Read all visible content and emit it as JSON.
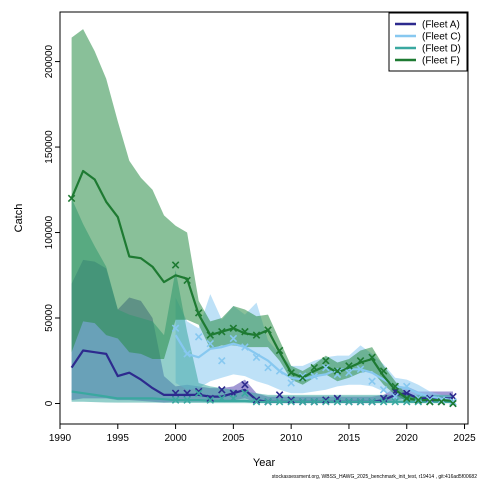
{
  "chart_data": {
    "type": "line",
    "xlabel": "Year",
    "ylabel": "Catch",
    "xlim": [
      1990,
      2025.3
    ],
    "ylim": [
      -12000,
      229000
    ],
    "xticks": [
      1990,
      1995,
      2000,
      2005,
      2010,
      2015,
      2020,
      2025
    ],
    "yticks": [
      0,
      50000,
      100000,
      150000,
      200000
    ],
    "xtick_labels": [
      "1990",
      "1995",
      "2000",
      "2005",
      "2010",
      "2015",
      "2020",
      "2025"
    ],
    "ytick_labels": [
      "0",
      "50000",
      "100000",
      "150000",
      "200000"
    ],
    "legend_position": "top-right",
    "footnote": "stockassessment.org, WBSS_HAWG_2025_benchmark_init_test, r19414 , git:416ad5f00682",
    "series": [
      {
        "name": "(Fleet A)",
        "color": "#2d2a8e",
        "fill": "rgba(86,70,176,0.55)",
        "x": [
          1991,
          1992,
          1993,
          1994,
          1995,
          1996,
          1997,
          1998,
          1999,
          2000,
          2001,
          2002,
          2003,
          2004,
          2005,
          2006,
          2007,
          2008,
          2009,
          2010,
          2011,
          2012,
          2013,
          2014,
          2015,
          2016,
          2017,
          2018,
          2019,
          2020,
          2021,
          2022,
          2023,
          2024
        ],
        "fit": [
          21000,
          31000,
          30000,
          29000,
          16000,
          18000,
          14000,
          9000,
          5000,
          5000,
          5000,
          5000,
          4000,
          4000,
          6000,
          8000,
          2000,
          1000,
          1000,
          1000,
          1000,
          1000,
          1000,
          1000,
          1000,
          1000,
          1000,
          2000,
          5000,
          6000,
          3000,
          3000,
          3000,
          3000
        ],
        "lower": [
          2000,
          3000,
          3000,
          3000,
          2000,
          2000,
          1500,
          1000,
          500,
          1000,
          1000,
          1000,
          1000,
          1000,
          2000,
          3000,
          500,
          200,
          200,
          200,
          200,
          200,
          200,
          200,
          200,
          200,
          200,
          500,
          2000,
          3000,
          1000,
          1000,
          1000,
          1000
        ],
        "upper": [
          70000,
          84000,
          83000,
          79000,
          55000,
          62000,
          60000,
          50000,
          16000,
          10000,
          11000,
          10000,
          9000,
          9000,
          10000,
          14000,
          6000,
          4000,
          4000,
          4000,
          4000,
          4000,
          4000,
          4000,
          4000,
          4000,
          4000,
          5000,
          9000,
          10000,
          7000,
          7000,
          7000,
          7000
        ],
        "obs_x": [
          2000,
          2001,
          2002,
          2003,
          2004,
          2005,
          2006,
          2007,
          2008,
          2009,
          2010,
          2011,
          2012,
          2013,
          2014,
          2015,
          2016,
          2017,
          2018,
          2019,
          2020,
          2021,
          2022,
          2023,
          2024
        ],
        "obs": [
          6000,
          6000,
          7000,
          3000,
          8000,
          6000,
          11000,
          2000,
          1000,
          5000,
          2000,
          1000,
          1000,
          2000,
          3000,
          1000,
          1000,
          1000,
          3000,
          7000,
          6000,
          2000,
          3000,
          1000,
          4000
        ]
      },
      {
        "name": "(Fleet C)",
        "color": "#87c8f0",
        "fill": "rgba(137,201,240,0.55)",
        "x": [
          2000,
          2001,
          2002,
          2003,
          2004,
          2005,
          2006,
          2007,
          2008,
          2009,
          2010,
          2011,
          2012,
          2013,
          2014,
          2015,
          2016,
          2017,
          2018,
          2019,
          2020,
          2021,
          2022,
          2023,
          2024
        ],
        "fit": [
          40000,
          29000,
          27000,
          32000,
          33000,
          35000,
          33000,
          29000,
          25000,
          19000,
          15000,
          14000,
          16000,
          17000,
          20000,
          20000,
          20000,
          18000,
          14000,
          10000,
          9000,
          6000,
          4000,
          3000,
          2000
        ],
        "lower": [
          12000,
          8000,
          9000,
          13000,
          15000,
          17000,
          16000,
          13000,
          11000,
          8000,
          6000,
          6000,
          7000,
          8000,
          10000,
          11000,
          11000,
          10000,
          7000,
          4000,
          3000,
          2000,
          1000,
          1000,
          500
        ],
        "upper": [
          62000,
          48000,
          44000,
          64000,
          49000,
          57000,
          52000,
          59000,
          37000,
          29000,
          22000,
          22000,
          25000,
          27000,
          28000,
          28000,
          34000,
          29000,
          23000,
          15000,
          14000,
          11000,
          7000,
          5000,
          4000
        ],
        "obs_x": [
          2000,
          2001,
          2002,
          2003,
          2004,
          2005,
          2006,
          2007,
          2008,
          2009,
          2010,
          2011,
          2012,
          2013,
          2014,
          2015,
          2016,
          2017,
          2018,
          2019,
          2020,
          2021,
          2022,
          2023,
          2024
        ],
        "obs": [
          44000,
          29000,
          39000,
          35000,
          25000,
          38000,
          33000,
          27000,
          21000,
          19000,
          12000,
          16000,
          16000,
          21000,
          17000,
          18000,
          20000,
          13000,
          8000,
          4000,
          10000,
          3000,
          2000,
          2000,
          1000
        ]
      },
      {
        "name": "(Fleet D)",
        "color": "#3aa8a0",
        "fill": "rgba(58,168,160,0.55)",
        "x": [
          1991,
          1992,
          1993,
          1994,
          1995,
          1996,
          1997,
          1998,
          1999,
          2000,
          2001,
          2002,
          2003,
          2004,
          2005,
          2006,
          2007,
          2008,
          2009,
          2010,
          2011,
          2012,
          2013,
          2014,
          2015,
          2016,
          2017,
          2018,
          2019,
          2020,
          2021,
          2022,
          2023,
          2024
        ],
        "fit": [
          7000,
          6000,
          5000,
          4000,
          3000,
          3000,
          3000,
          3000,
          2500,
          2000,
          2000,
          2000,
          1500,
          1500,
          1500,
          1500,
          1000,
          1000,
          1000,
          1000,
          1000,
          1000,
          1000,
          1000,
          1000,
          1000,
          1000,
          1000,
          1000,
          1000,
          1000,
          1000,
          1000,
          1000
        ],
        "lower": [
          1000,
          1000,
          800,
          600,
          500,
          500,
          500,
          500,
          400,
          300,
          300,
          300,
          200,
          200,
          200,
          200,
          100,
          100,
          100,
          100,
          100,
          100,
          100,
          100,
          100,
          100,
          100,
          100,
          100,
          100,
          100,
          100,
          100,
          100
        ],
        "upper": [
          120000,
          105000,
          92000,
          80000,
          55000,
          52000,
          50000,
          48000,
          40000,
          78000,
          42000,
          12000,
          10000,
          9000,
          8000,
          7000,
          6000,
          5000,
          5000,
          5000,
          5000,
          5000,
          5000,
          5000,
          5000,
          5000,
          5000,
          5000,
          5000,
          5000,
          5000,
          5000,
          5000,
          5000
        ],
        "obs_x": [
          2000,
          2001,
          2002,
          2003,
          2004,
          2005,
          2006,
          2007,
          2008,
          2009,
          2010,
          2011,
          2012,
          2013,
          2014,
          2015,
          2016,
          2017,
          2018,
          2019,
          2020,
          2021,
          2022,
          2023,
          2024
        ],
        "obs": [
          2000,
          2000,
          6000,
          2000,
          3000,
          3000,
          6000,
          1000,
          1000,
          1000,
          1000,
          1000,
          1000,
          1000,
          1000,
          1000,
          1000,
          1000,
          1000,
          1000,
          1000,
          1000,
          1000,
          1000,
          0
        ]
      },
      {
        "name": "(Fleet F)",
        "color": "#1e7a32",
        "fill": "rgba(40,140,70,0.55)",
        "x": [
          1991,
          1992,
          1993,
          1994,
          1995,
          1996,
          1997,
          1998,
          1999,
          2000,
          2001,
          2002,
          2003,
          2004,
          2005,
          2006,
          2007,
          2008,
          2009,
          2010,
          2011,
          2012,
          2013,
          2014,
          2015,
          2016,
          2017,
          2018,
          2019,
          2020,
          2021,
          2022,
          2023,
          2024
        ],
        "fit": [
          120000,
          136000,
          131000,
          118000,
          109000,
          86000,
          85000,
          80000,
          71000,
          75000,
          73000,
          52000,
          40000,
          42000,
          44000,
          41000,
          40000,
          43000,
          30000,
          18000,
          15000,
          19000,
          22000,
          18000,
          21000,
          24000,
          26000,
          16000,
          8000,
          3000,
          2000,
          2000,
          2000,
          1500
        ],
        "lower": [
          30000,
          48000,
          47000,
          40000,
          38000,
          30000,
          29000,
          26000,
          26000,
          49000,
          49000,
          46000,
          32000,
          34000,
          34000,
          33000,
          33000,
          33000,
          25000,
          14000,
          11000,
          15000,
          17000,
          13000,
          15000,
          18000,
          19000,
          11000,
          5000,
          1500,
          1000,
          1000,
          1000,
          500
        ],
        "upper": [
          214000,
          219000,
          206000,
          190000,
          165000,
          142000,
          132000,
          125000,
          110000,
          104000,
          100000,
          60000,
          48000,
          50000,
          57000,
          55000,
          51000,
          52000,
          37000,
          22000,
          19000,
          23000,
          28000,
          24000,
          26000,
          31000,
          33000,
          22000,
          13000,
          5000,
          4000,
          4000,
          4000,
          3000
        ],
        "obs_x": [
          1991,
          2000,
          2001,
          2002,
          2003,
          2004,
          2005,
          2006,
          2007,
          2008,
          2009,
          2010,
          2011,
          2012,
          2013,
          2014,
          2015,
          2016,
          2017,
          2018,
          2019,
          2020,
          2021,
          2022,
          2023,
          2024
        ],
        "obs": [
          120000,
          81000,
          72000,
          53000,
          40000,
          42000,
          44000,
          42000,
          40000,
          43000,
          31000,
          18000,
          15000,
          21000,
          25000,
          19000,
          22000,
          25000,
          27000,
          19000,
          10000,
          3000,
          2000,
          1000,
          1000,
          0
        ]
      }
    ]
  }
}
